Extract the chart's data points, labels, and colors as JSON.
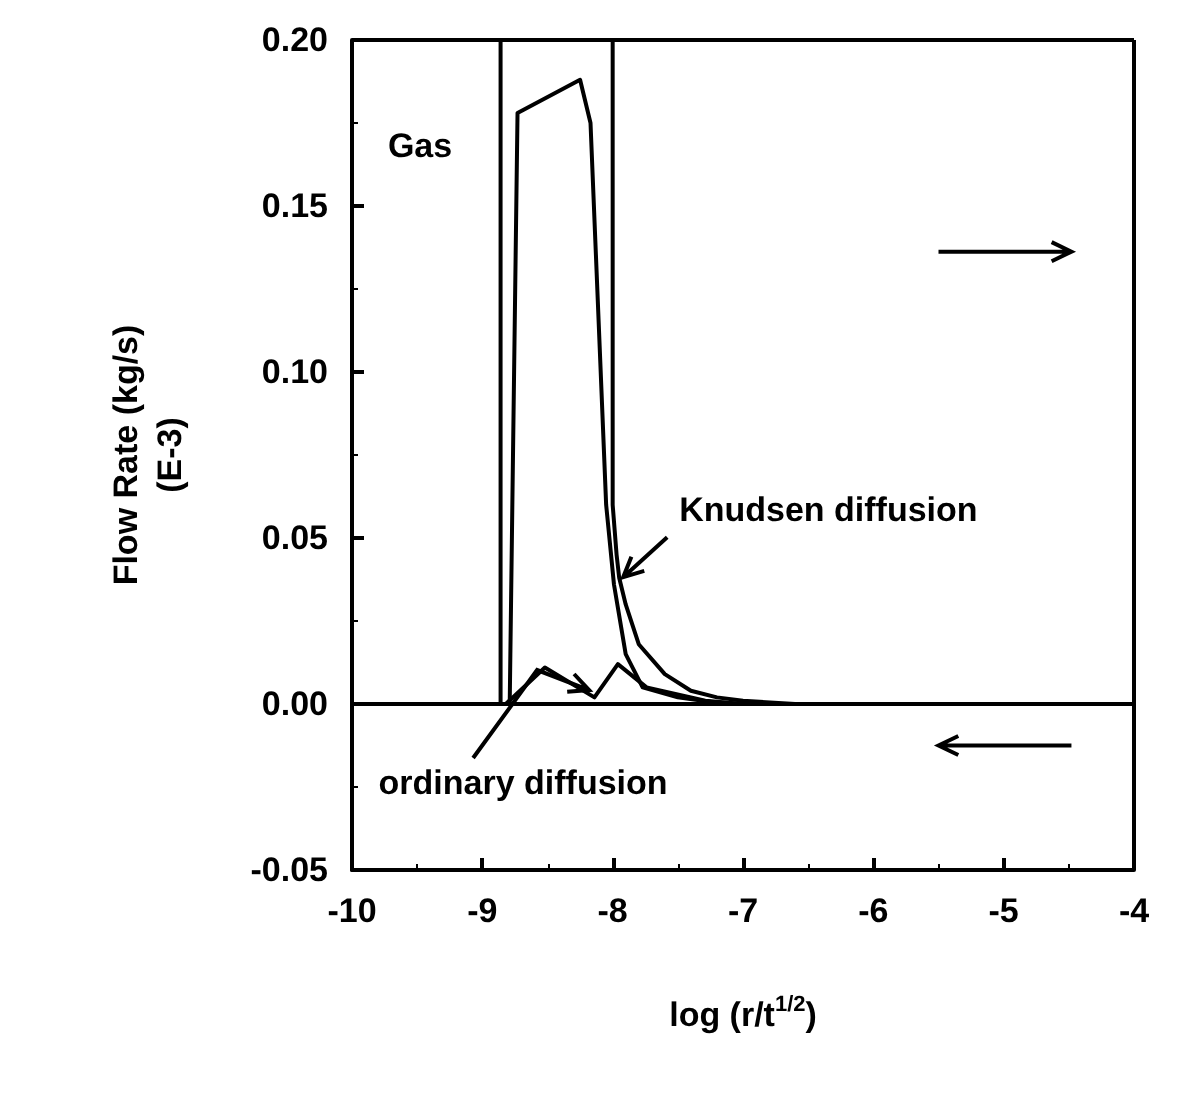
{
  "chart_data": {
    "type": "line",
    "xlabel": "log (r/t$^{1/2}$)",
    "ylabel": "Flow Rate (kg/s)\n(E-3)",
    "xlim": [
      -10,
      -4
    ],
    "xticks": [
      -10,
      -9,
      -8,
      -7,
      -6,
      -5,
      -4
    ],
    "ylim": [
      -0.05,
      0.2
    ],
    "yticks": [
      {
        "value": -0.05,
        "label": "-0.05"
      },
      {
        "value": 0,
        "label": "0.00"
      },
      {
        "value": 0.05,
        "label": "0.05"
      },
      {
        "value": 0.1,
        "label": "0.10"
      },
      {
        "value": 0.15,
        "label": "0.15"
      },
      {
        "value": 0.2,
        "label": "0.20"
      }
    ],
    "grid": false,
    "marker": "none",
    "line_style": "solid",
    "series": [
      {
        "color": "#000000",
        "x": [
          -10,
          -4
        ],
        "values": [
          0,
          0
        ]
      },
      {
        "color": "#000000",
        "x": [
          -8.86,
          -8.86
        ],
        "values": [
          0,
          0.2
        ]
      },
      {
        "color": "#000000",
        "x": [
          -8.79,
          -8.73,
          -8.25,
          -8.17,
          -8.05,
          -7.99,
          -7.9,
          -7.77,
          -7.5,
          -7.24,
          -7.0,
          -4
        ],
        "values": [
          0,
          0.178,
          0.188,
          0.175,
          0.06,
          0.036,
          0.015,
          0.005,
          0.002,
          0.0006,
          0,
          0
        ]
      },
      {
        "color": "#000000",
        "x": [
          -8.0,
          -8.0,
          -7.97,
          -7.95,
          -7.9,
          -7.8,
          -7.6,
          -7.4,
          -7.2,
          -7.0,
          -6.6,
          -4
        ],
        "values": [
          0.2,
          0.06,
          0.045,
          0.038,
          0.03,
          0.018,
          0.009,
          0.004,
          0.002,
          0.001,
          0,
          0
        ]
      },
      {
        "color": "#000000",
        "x": [
          -8.82,
          -8.52,
          -8.14,
          -7.96,
          -7.74,
          -7.29,
          -7.0,
          -4
        ],
        "values": [
          0,
          0.011,
          0.002,
          0.012,
          0.005,
          0.001,
          0,
          0
        ]
      }
    ],
    "annotations": [
      "Gas",
      {
        "text": "Knudsen diffusion",
        "x": -7.95,
        "y": 0.037
      },
      {
        "text": "ordinary diffusion",
        "x": -8.15,
        "y": 0.003
      }
    ]
  }
}
